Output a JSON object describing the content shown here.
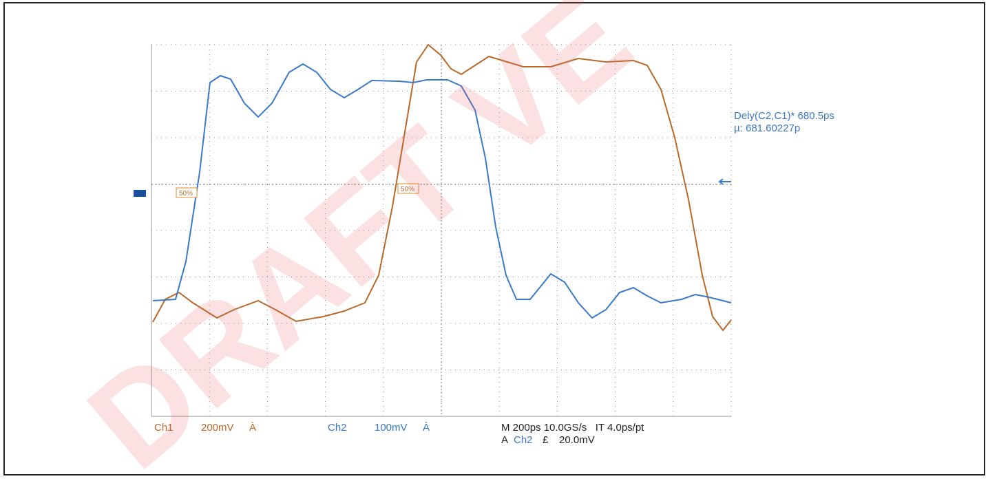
{
  "measurement": {
    "delay": "Dely(C2,C1)* 680.5ps",
    "mean": "µ: 681.60227p"
  },
  "markers": {
    "ch1_level": "50%",
    "ch2_level": "50%"
  },
  "status": {
    "ch1": "Ch1",
    "ch1_scale": "200mV",
    "ch1_coupling": "À",
    "ch2": "Ch2",
    "ch2_scale": "100mV",
    "ch2_coupling": "À",
    "timebase": "M 200ps 10.0GS/s   IT 4.0ps/pt",
    "trigger_prefix": "A",
    "trigger_source": "Ch2",
    "trigger_slope": "£",
    "trigger_level": "20.0mV"
  },
  "watermark": "DRAFT VE"
}
